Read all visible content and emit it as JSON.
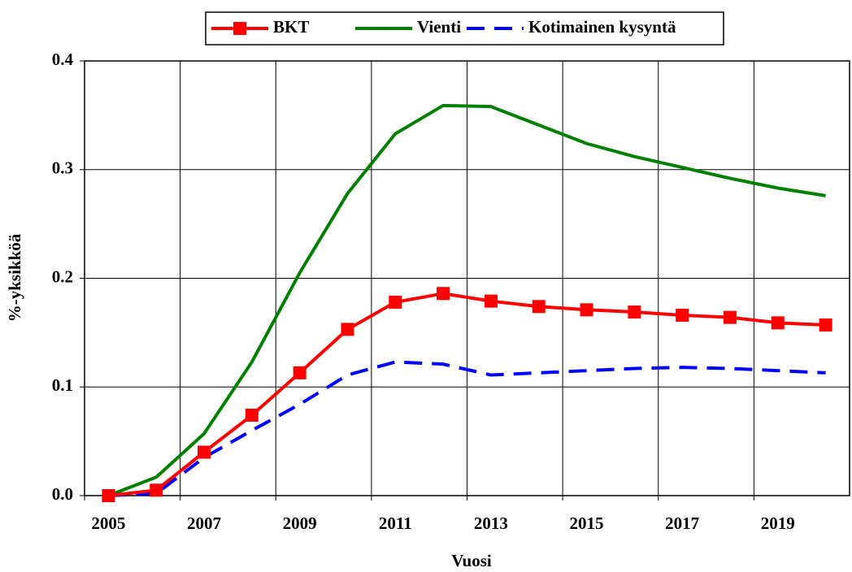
{
  "chart_data": {
    "type": "line",
    "x_label": "Vuosi",
    "y_label": "%-yksikköä",
    "categories": [
      "2005",
      null,
      "2007",
      null,
      "2009",
      null,
      "2011",
      null,
      "2013",
      null,
      "2015",
      null,
      "2017",
      null,
      "2019",
      null
    ],
    "series": [
      {
        "name": "BKT",
        "color": "#ff0000",
        "marker": "square",
        "dash": "solid",
        "values": [
          0.0,
          0.005,
          0.04,
          0.074,
          0.113,
          0.153,
          0.178,
          0.186,
          0.179,
          0.174,
          0.171,
          0.169,
          0.166,
          0.164,
          0.159,
          0.157
        ]
      },
      {
        "name": "Vienti",
        "color": "#008000",
        "marker": "none",
        "dash": "solid",
        "values": [
          0.0,
          0.017,
          0.057,
          0.123,
          0.205,
          0.278,
          0.333,
          0.359,
          0.358,
          0.341,
          0.324,
          0.312,
          0.302,
          0.292,
          0.283,
          0.276
        ]
      },
      {
        "name": "Kotimainen kysyntä",
        "color": "#0000ff",
        "marker": "none",
        "dash": "dashed",
        "values": [
          0.0,
          0.002,
          0.035,
          0.06,
          0.084,
          0.111,
          0.123,
          0.121,
          0.111,
          0.113,
          0.115,
          0.117,
          0.118,
          0.117,
          0.115,
          0.113
        ]
      }
    ],
    "ylim": [
      0,
      0.4
    ],
    "yticks": [
      {
        "value": 0,
        "label": "0.0"
      },
      0.1,
      0.2,
      0.3,
      0.4
    ],
    "grid": true,
    "legend": "top"
  }
}
